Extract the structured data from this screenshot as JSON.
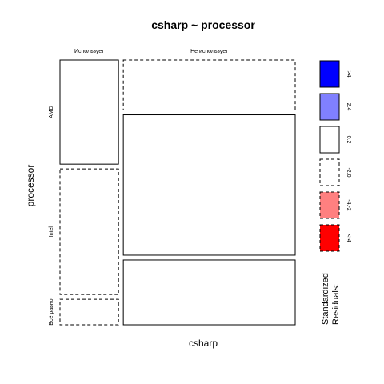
{
  "chart_data": {
    "type": "mosaic",
    "title": "csharp ~ processor",
    "xlabel": "csharp",
    "ylabel": "processor",
    "x_categories": [
      "Использует",
      "Не использует"
    ],
    "y_categories": [
      "AMD",
      "Intel",
      "Всё равно"
    ],
    "x_proportions": [
      0.254,
      0.746
    ],
    "cells": [
      {
        "x": "Использует",
        "y": "AMD",
        "proportion": 0.408,
        "residual_class": "0:2"
      },
      {
        "x": "Использует",
        "y": "Intel",
        "proportion": 0.492,
        "residual_class": "-2:0"
      },
      {
        "x": "Использует",
        "y": "Всё равно",
        "proportion": 0.1,
        "residual_class": "-2:0"
      },
      {
        "x": "Не использует",
        "y": "AMD",
        "proportion": 0.196,
        "residual_class": "-2:0"
      },
      {
        "x": "Не использует",
        "y": "Intel",
        "proportion": 0.55,
        "residual_class": "0:2"
      },
      {
        "x": "Не использует",
        "y": "Всё равно",
        "proportion": 0.254,
        "residual_class": "0:2"
      }
    ],
    "legend": {
      "title": "Standardized Residuals:",
      "placement": "right",
      "entries": [
        {
          "label": ">4",
          "fill": "#0000ff",
          "dashed": false
        },
        {
          "label": "2:4",
          "fill": "#8080ff",
          "dashed": false
        },
        {
          "label": "0:2",
          "fill": "#ffffff",
          "dashed": false
        },
        {
          "label": "-2:0",
          "fill": "#ffffff",
          "dashed": true
        },
        {
          "label": "-4:-2",
          "fill": "#ff8080",
          "dashed": true
        },
        {
          "label": "<-4",
          "fill": "#ff0000",
          "dashed": true
        }
      ]
    }
  }
}
